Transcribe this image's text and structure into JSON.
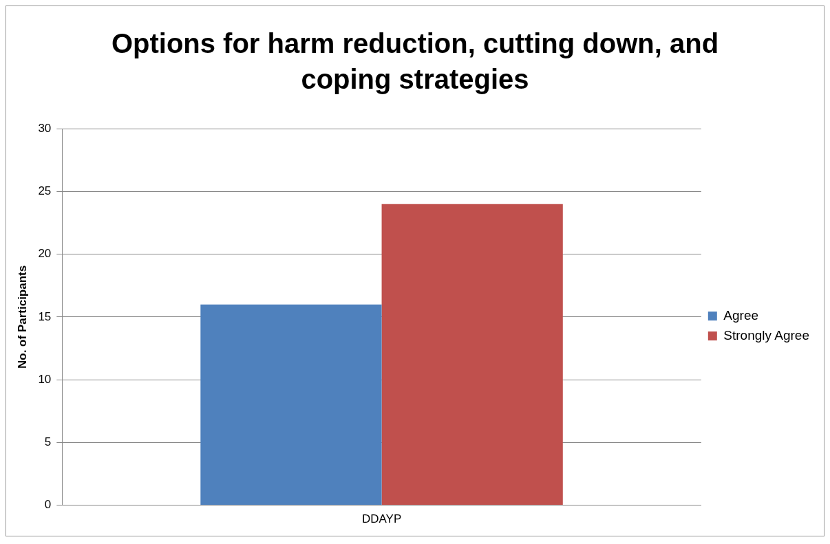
{
  "chart_data": {
    "type": "bar",
    "title": "Options for harm reduction, cutting down, and coping strategies",
    "ylabel": "No. of Participants",
    "categories": [
      "DDAYP"
    ],
    "series": [
      {
        "name": "Agree",
        "color": "#4f81bd",
        "values": [
          16
        ]
      },
      {
        "name": "Strongly Agree",
        "color": "#c0504d",
        "values": [
          24
        ]
      }
    ],
    "ylim": [
      0,
      30
    ],
    "yticks": [
      0,
      5,
      10,
      15,
      20,
      25,
      30
    ],
    "grid": "y",
    "legend": "right"
  }
}
